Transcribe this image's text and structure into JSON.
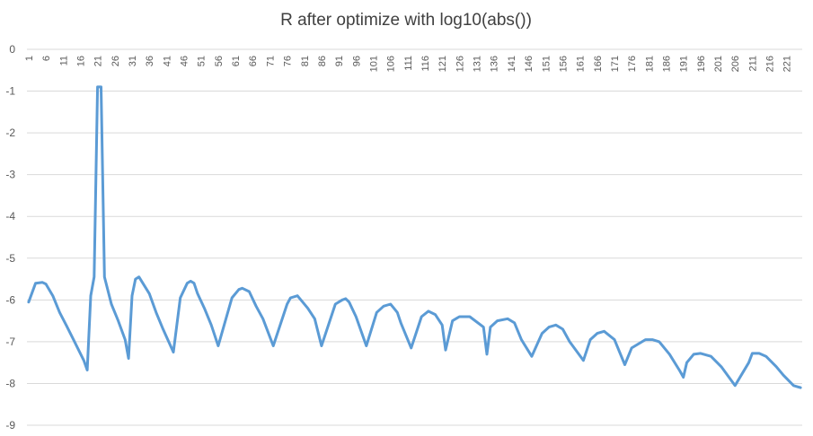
{
  "chart_data": {
    "type": "line",
    "title": "R after optimize with log10(abs())",
    "xlabel": "",
    "ylabel": "",
    "ylim": [
      -9,
      0
    ],
    "yticks": [
      0,
      -1,
      -2,
      -3,
      -4,
      -5,
      -6,
      -7,
      -8,
      -9
    ],
    "x_range": [
      1,
      225
    ],
    "xtick_start": 1,
    "xtick_step": 5,
    "xtick_count": 45,
    "grid": true,
    "legend": "none",
    "color": "#5b9bd5",
    "series": [
      {
        "x": [
          1,
          3,
          5,
          6,
          8,
          10,
          12,
          14,
          17,
          18,
          19,
          20,
          21,
          22,
          23,
          25,
          27,
          29,
          30,
          31,
          32,
          33,
          36,
          38,
          40,
          43,
          45,
          47,
          48,
          49,
          50,
          52,
          54,
          56,
          60,
          62,
          63,
          65,
          67,
          69,
          72,
          76,
          77,
          79,
          82,
          84,
          86,
          90,
          92,
          93,
          94,
          96,
          99,
          102,
          104,
          106,
          107,
          108,
          109,
          112,
          115,
          117,
          119,
          121,
          122,
          124,
          126,
          129,
          133,
          134,
          135,
          137,
          140,
          142,
          144,
          147,
          150,
          152,
          154,
          156,
          158,
          162,
          164,
          166,
          168,
          171,
          174,
          176,
          180,
          182,
          184,
          187,
          190,
          191,
          192,
          194,
          196,
          199,
          202,
          206,
          210,
          211,
          213,
          215,
          218,
          220,
          223,
          225
        ],
        "y": [
          -6.05,
          -5.6,
          -5.58,
          -5.62,
          -5.9,
          -6.3,
          -6.62,
          -6.95,
          -7.45,
          -7.68,
          -5.9,
          -5.45,
          -0.9,
          -0.9,
          -5.45,
          -6.1,
          -6.5,
          -6.95,
          -7.4,
          -5.9,
          -5.5,
          -5.45,
          -5.85,
          -6.3,
          -6.7,
          -7.25,
          -5.95,
          -5.6,
          -5.55,
          -5.6,
          -5.85,
          -6.2,
          -6.6,
          -7.1,
          -5.95,
          -5.75,
          -5.72,
          -5.8,
          -6.15,
          -6.45,
          -7.1,
          -6.1,
          -5.95,
          -5.9,
          -6.2,
          -6.45,
          -7.1,
          -6.1,
          -6.0,
          -5.97,
          -6.05,
          -6.4,
          -7.1,
          -6.3,
          -6.15,
          -6.1,
          -6.2,
          -6.3,
          -6.55,
          -7.15,
          -6.4,
          -6.27,
          -6.35,
          -6.6,
          -7.2,
          -6.5,
          -6.4,
          -6.4,
          -6.65,
          -7.3,
          -6.65,
          -6.5,
          -6.45,
          -6.55,
          -6.95,
          -7.35,
          -6.8,
          -6.65,
          -6.6,
          -6.7,
          -7.0,
          -7.45,
          -6.95,
          -6.8,
          -6.75,
          -6.95,
          -7.55,
          -7.15,
          -6.95,
          -6.95,
          -7.0,
          -7.3,
          -7.7,
          -7.85,
          -7.5,
          -7.3,
          -7.28,
          -7.35,
          -7.6,
          -8.05,
          -7.5,
          -7.28,
          -7.28,
          -7.35,
          -7.6,
          -7.8,
          -8.05,
          -8.1
        ]
      }
    ]
  }
}
